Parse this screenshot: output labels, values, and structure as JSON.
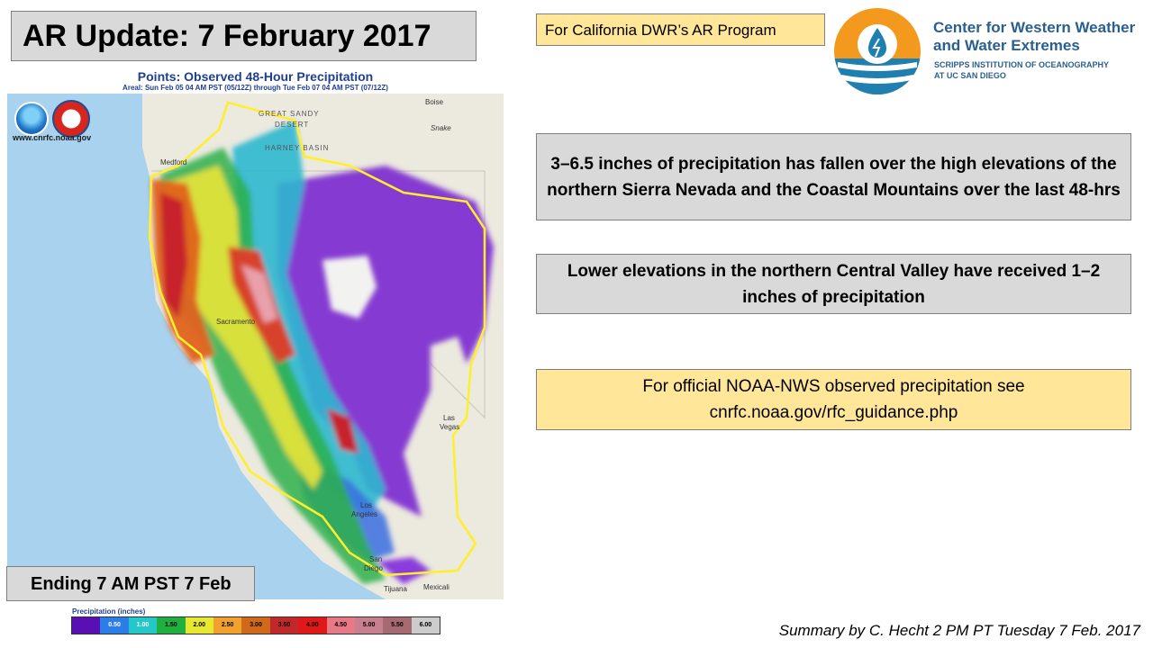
{
  "slide": {
    "title": "AR Update: 7 February 2017",
    "program_label": "For California DWR’s AR Program",
    "ending_label": "Ending 7 AM PST 7 Feb",
    "footer": "Summary by C. Hecht 2 PM PT Tuesday 7 Feb. 2017"
  },
  "organization": {
    "name_line1": "Center for Western Weather",
    "name_line2": "and Water Extremes",
    "sub_line1": "SCRIPPS INSTITUTION OF OCEANOGRAPHY",
    "sub_line2": "AT UC SAN DIEGO",
    "logo_icon": "water-drop-circle-icon",
    "colors": {
      "orange": "#f39a1e",
      "teal": "#1f7fb0",
      "text": "#2b5f8f"
    }
  },
  "map": {
    "title": "Points: Observed 48-Hour Precipitation",
    "subtitle": "Areal: Sun Feb 05 04 AM PST (05/12Z) through Tue Feb 07 04 AM PST (07/12Z)",
    "url": "www.cnrfc.noaa.gov",
    "logos": [
      "noaa-logo",
      "nws-logo"
    ],
    "labels": {
      "great_sandy_desert": "GREAT SANDY",
      "desert": "DESERT",
      "harney_basin": "HARNEY BASIN",
      "boise": "Boise",
      "snake": "Snake",
      "medford": "Medford",
      "sacramento": "Sacramento",
      "las_vegas_1": "Las",
      "las_vegas_2": "Vegas",
      "los_angeles_1": "Los",
      "los_angeles_2": "Angeles",
      "san_diego_1": "San",
      "san_diego_2": "Diego",
      "tijuana": "Tijuana",
      "mexicali": "Mexicali"
    }
  },
  "legend": {
    "title": "Precipitation (inches)",
    "ticks": [
      "0.50",
      "1.00",
      "1.50",
      "2.00",
      "2.50",
      "3.00",
      "3.50",
      "4.00",
      "4.50",
      "5.00",
      "5.50",
      "6.00"
    ],
    "colors": [
      "#5a0fb4",
      "#2b7ee8",
      "#25c8c8",
      "#20b040",
      "#e8e830",
      "#f2a22c",
      "#d06a1a",
      "#c0282a",
      "#e01818",
      "#e87a88",
      "#c88090",
      "#a86a72",
      "#cccccc"
    ]
  },
  "summary": {
    "box_a": "3–6.5 inches of precipitation has fallen over the high elevations of the northern Sierra Nevada and the Coastal Mountains over the last 48-hrs",
    "box_b": "Lower elevations in the northern Central Valley have received 1–2 inches of precipitation",
    "box_c_line1": "For official NOAA-NWS observed precipitation see",
    "box_c_line2": "cnrfc.noaa.gov/rfc_guidance.php"
  }
}
